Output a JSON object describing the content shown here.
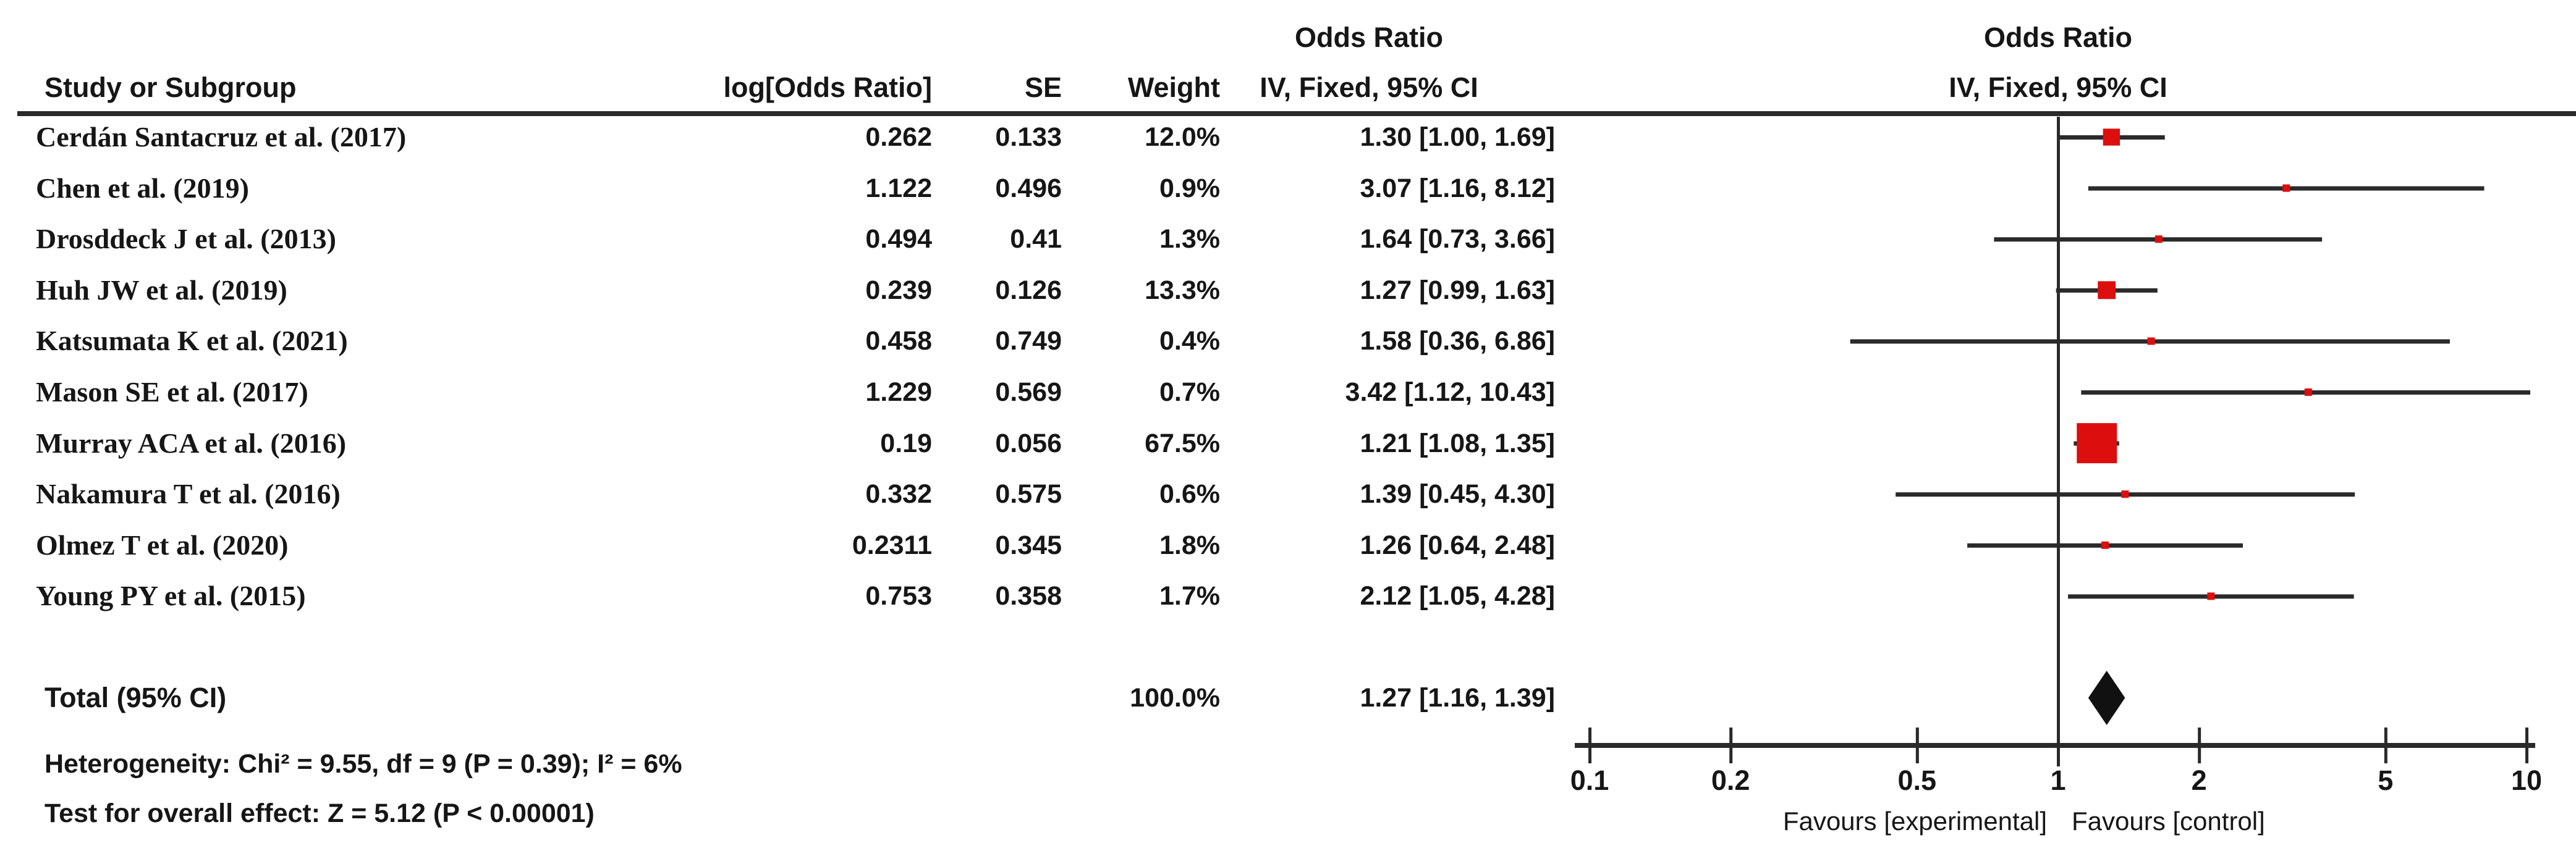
{
  "figure": {
    "kind": "forest-plot (meta-analysis, RevMan style)"
  },
  "headers": {
    "study": "Study or Subgroup",
    "log_or": "log[Odds Ratio]",
    "se": "SE",
    "weight": "Weight",
    "or_text_col_line1": "Odds Ratio",
    "or_text_col_line2": "IV, Fixed, 95% CI",
    "or_plot_col_line1": "Odds Ratio",
    "or_plot_col_line2": "IV, Fixed, 95% CI"
  },
  "total": {
    "label": "Total (95% CI)",
    "weight": "100.0%",
    "ci_text": "1.27 [1.16, 1.39]"
  },
  "stats": {
    "heterogeneity": "Heterogeneity: Chi² = 9.55, df = 9 (P = 0.39); I² = 6%",
    "overall_effect": "Test for overall effect: Z = 5.12 (P < 0.00001)"
  },
  "axis": {
    "favours_left": "Favours [experimental]",
    "favours_right": "Favours [control]"
  },
  "chart_data": {
    "type": "scatter",
    "subtype": "forest",
    "effect_measure": "Odds Ratio",
    "method": "IV, Fixed, 95% CI",
    "x_scale": "log",
    "x_ticks": [
      0.1,
      0.2,
      0.5,
      1,
      2,
      5,
      10
    ],
    "xlim": [
      0.1,
      10
    ],
    "marker_color": "#dd0e0e",
    "line_color": "#2a2a2a",
    "diamond_color": "#111111",
    "studies": [
      {
        "name": "Cerdán Santacruz et al. (2017)",
        "log_or": "0.262",
        "se": "0.133",
        "weight": "12.0%",
        "weight_pct": 12.0,
        "or": 1.3,
        "ci_low": 1.0,
        "ci_high": 1.69,
        "ci_text": "1.30 [1.00, 1.69]"
      },
      {
        "name": "Chen et al. (2019)",
        "log_or": "1.122",
        "se": "0.496",
        "weight": "0.9%",
        "weight_pct": 0.9,
        "or": 3.07,
        "ci_low": 1.16,
        "ci_high": 8.12,
        "ci_text": "3.07 [1.16, 8.12]"
      },
      {
        "name": "Drosddeck J et al. (2013)",
        "log_or": "0.494",
        "se": "0.41",
        "weight": "1.3%",
        "weight_pct": 1.3,
        "or": 1.64,
        "ci_low": 0.73,
        "ci_high": 3.66,
        "ci_text": "1.64 [0.73, 3.66]"
      },
      {
        "name": "Huh JW et al. (2019)",
        "log_or": "0.239",
        "se": "0.126",
        "weight": "13.3%",
        "weight_pct": 13.3,
        "or": 1.27,
        "ci_low": 0.99,
        "ci_high": 1.63,
        "ci_text": "1.27 [0.99, 1.63]"
      },
      {
        "name": "Katsumata K et al. (2021)",
        "log_or": "0.458",
        "se": "0.749",
        "weight": "0.4%",
        "weight_pct": 0.4,
        "or": 1.58,
        "ci_low": 0.36,
        "ci_high": 6.86,
        "ci_text": "1.58 [0.36, 6.86]"
      },
      {
        "name": "Mason SE et al. (2017)",
        "log_or": "1.229",
        "se": "0.569",
        "weight": "0.7%",
        "weight_pct": 0.7,
        "or": 3.42,
        "ci_low": 1.12,
        "ci_high": 10.43,
        "ci_text": "3.42 [1.12, 10.43]"
      },
      {
        "name": "Murray ACA et al. (2016)",
        "log_or": "0.19",
        "se": "0.056",
        "weight": "67.5%",
        "weight_pct": 67.5,
        "or": 1.21,
        "ci_low": 1.08,
        "ci_high": 1.35,
        "ci_text": "1.21 [1.08, 1.35]"
      },
      {
        "name": "Nakamura T et al. (2016)",
        "log_or": "0.332",
        "se": "0.575",
        "weight": "0.6%",
        "weight_pct": 0.6,
        "or": 1.39,
        "ci_low": 0.45,
        "ci_high": 4.3,
        "ci_text": "1.39 [0.45, 4.30]"
      },
      {
        "name": "Olmez T et al. (2020)",
        "log_or": "0.2311",
        "se": "0.345",
        "weight": "1.8%",
        "weight_pct": 1.8,
        "or": 1.26,
        "ci_low": 0.64,
        "ci_high": 2.48,
        "ci_text": "1.26 [0.64, 2.48]"
      },
      {
        "name": "Young PY et al. (2015)",
        "log_or": "0.753",
        "se": "0.358",
        "weight": "1.7%",
        "weight_pct": 1.7,
        "or": 2.12,
        "ci_low": 1.05,
        "ci_high": 4.28,
        "ci_text": "2.12 [1.05, 4.28]"
      }
    ],
    "total": {
      "or": 1.27,
      "ci_low": 1.16,
      "ci_high": 1.39,
      "weight_pct": 100.0
    },
    "heterogeneity": {
      "chi2": 9.55,
      "df": 9,
      "p": 0.39,
      "i2_pct": 6
    },
    "overall_effect": {
      "z": 5.12,
      "p_text": "P < 0.00001"
    }
  }
}
